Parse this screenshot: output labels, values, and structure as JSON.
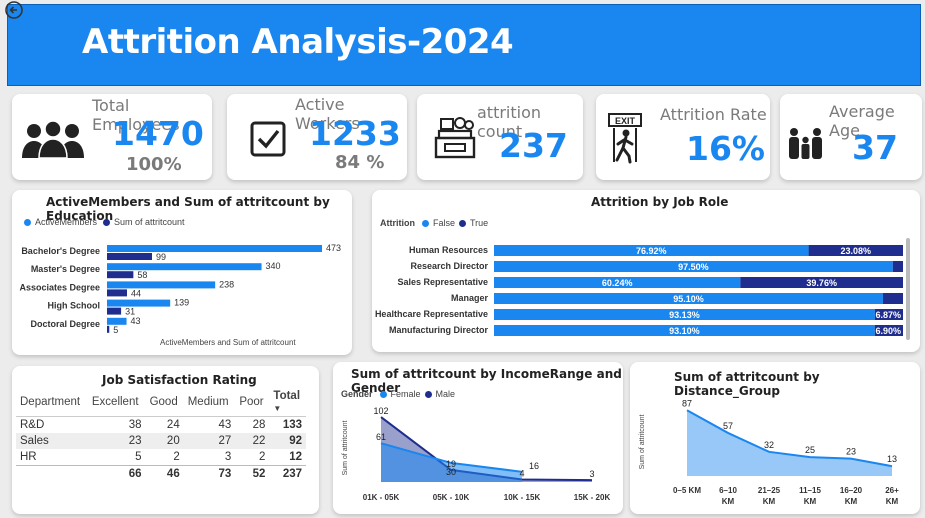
{
  "header": {
    "title": "Attrition Analysis-2024"
  },
  "kpis": [
    {
      "label": "Total Employees",
      "value": "1470",
      "sub": "100%",
      "icon": "people-group-icon"
    },
    {
      "label": "Active Workers",
      "value": "1233",
      "sub": "84 %",
      "icon": "checkbox-icon"
    },
    {
      "label": "attrition count",
      "value": "237",
      "icon": "cash-register-icon"
    },
    {
      "label": "Attrition Rate",
      "value": "16%",
      "icon": "exit-door-icon"
    },
    {
      "label": "Average Age",
      "value": "37",
      "icon": "family-icon"
    }
  ],
  "colors": {
    "primary": "#1a86f0",
    "dark": "#1f2d8f",
    "header": "#1a86f0"
  },
  "chart_data": [
    {
      "type": "bar",
      "title": "ActiveMembers and Sum of attritcount by Education",
      "xlabel": "ActiveMembers and Sum of attritcount",
      "categories": [
        "Bachelor's Degree",
        "Master's Degree",
        "Associates Degree",
        "High School",
        "Doctoral Degree"
      ],
      "series": [
        {
          "name": "ActiveMembers",
          "values": [
            473,
            340,
            238,
            139,
            43
          ]
        },
        {
          "name": "Sum of attritcount",
          "values": [
            99,
            58,
            44,
            31,
            5
          ]
        }
      ],
      "legend": "top-left"
    },
    {
      "type": "bar",
      "title": "Attrition by Job Role",
      "legend_title": "Attrition",
      "categories": [
        "Human Resources",
        "Research Director",
        "Sales Representative",
        "Manager",
        "Healthcare Representative",
        "Manufacturing Director"
      ],
      "series": [
        {
          "name": "False",
          "values": [
            76.92,
            97.5,
            60.24,
            95.1,
            93.13,
            93.1
          ]
        },
        {
          "name": "True",
          "values": [
            23.08,
            2.5,
            39.76,
            4.9,
            6.87,
            6.9
          ]
        }
      ],
      "labels_false": [
        "76.92%",
        "97.50%",
        "60.24%",
        "95.10%",
        "93.13%",
        "93.10%"
      ],
      "labels_true": [
        "23.08%",
        "",
        "39.76%",
        "",
        "6.87%",
        "6.90%"
      ],
      "stacked": true
    },
    {
      "type": "table",
      "title": "Job Satisfaction Rating",
      "columns": [
        "Department",
        "Excellent",
        "Good",
        "Medium",
        "Poor",
        "Total"
      ],
      "rows": [
        [
          "R&D",
          "38",
          "24",
          "43",
          "28",
          "133"
        ],
        [
          "Sales",
          "23",
          "20",
          "27",
          "22",
          "92"
        ],
        [
          "HR",
          "5",
          "2",
          "3",
          "2",
          "12"
        ]
      ],
      "totals": [
        "",
        "66",
        "46",
        "73",
        "52",
        "237"
      ]
    },
    {
      "type": "area",
      "title": "Sum of attritcount by IncomeRange and Gender",
      "legend_title": "Gender",
      "ylabel": "Sum of attritcount",
      "categories": [
        "01K - 05K",
        "05K - 10K",
        "10K - 15K",
        "15K - 20K"
      ],
      "series": [
        {
          "name": "Female",
          "values": [
            61,
            30,
            16,
            null
          ]
        },
        {
          "name": "Male",
          "values": [
            102,
            19,
            4,
            3
          ]
        }
      ],
      "label_text": {
        "female": [
          "61",
          "30",
          "16"
        ],
        "male": [
          "102",
          "19",
          "4",
          "3"
        ]
      }
    },
    {
      "type": "area",
      "title": "Sum of attritcount by Distance_Group",
      "ylabel": "Sum of attritcount",
      "categories": [
        "0–5 KM",
        "6–10 KM",
        "21–25 KM",
        "11–15 KM",
        "16–20 KM",
        "26+ KM"
      ],
      "category_lines": [
        [
          "0–5 KM"
        ],
        [
          "6–10",
          "KM"
        ],
        [
          "21–25",
          "KM"
        ],
        [
          "11–15",
          "KM"
        ],
        [
          "16–20",
          "KM"
        ],
        [
          "26+",
          "KM"
        ]
      ],
      "values": [
        87,
        57,
        32,
        25,
        23,
        13
      ],
      "value_labels": [
        "87",
        "57",
        "32",
        "25",
        "23",
        "13"
      ]
    }
  ]
}
